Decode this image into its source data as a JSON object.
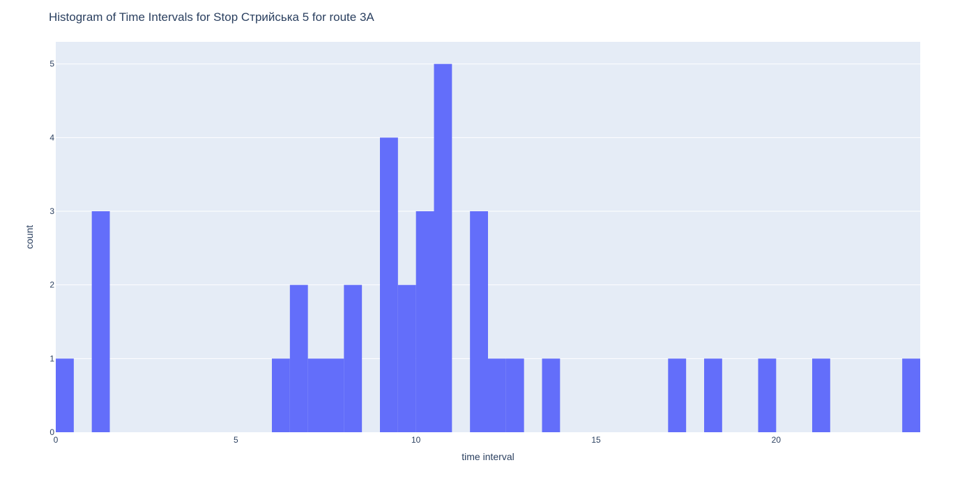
{
  "chart_data": {
    "type": "histogram",
    "title": "Histogram of Time Intervals for Stop Стрийська 5 for route 3A",
    "xlabel": "time interval",
    "ylabel": "count",
    "xlim": [
      0,
      24
    ],
    "ylim": [
      0,
      5.3
    ],
    "xticks": [
      0,
      5,
      10,
      15,
      20
    ],
    "yticks": [
      0,
      1,
      2,
      3,
      4,
      5
    ],
    "bin_width": 0.5,
    "grid": true,
    "colors": {
      "bar": "#636efa",
      "plot_bg": "#e5ecf6",
      "grid": "#ffffff",
      "text": "#2a3f5f"
    },
    "bins": [
      {
        "start": 0.0,
        "count": 1
      },
      {
        "start": 1.0,
        "count": 3
      },
      {
        "start": 6.0,
        "count": 1
      },
      {
        "start": 6.5,
        "count": 2
      },
      {
        "start": 7.0,
        "count": 1
      },
      {
        "start": 7.5,
        "count": 1
      },
      {
        "start": 8.0,
        "count": 2
      },
      {
        "start": 9.0,
        "count": 4
      },
      {
        "start": 9.5,
        "count": 2
      },
      {
        "start": 10.0,
        "count": 3
      },
      {
        "start": 10.5,
        "count": 5
      },
      {
        "start": 11.5,
        "count": 3
      },
      {
        "start": 12.0,
        "count": 1
      },
      {
        "start": 12.5,
        "count": 1
      },
      {
        "start": 13.5,
        "count": 1
      },
      {
        "start": 17.0,
        "count": 1
      },
      {
        "start": 18.0,
        "count": 1
      },
      {
        "start": 19.5,
        "count": 1
      },
      {
        "start": 21.0,
        "count": 1
      },
      {
        "start": 23.5,
        "count": 1
      }
    ]
  }
}
